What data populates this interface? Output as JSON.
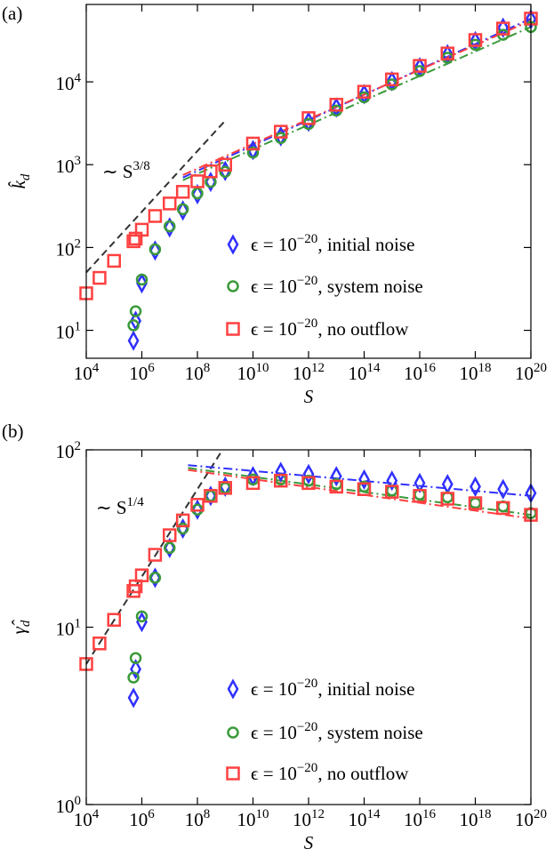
{
  "chart_data": [
    {
      "type": "scatter",
      "panel_label": "(a)",
      "xlabel": "S",
      "ylabel": "k̂_d",
      "log_x": true,
      "log_y": true,
      "legend": "lower right",
      "annotations": [
        "∼ S^3/8"
      ],
      "xlim": [
        10000.0,
        1e+20
      ],
      "ylim": [
        4.6,
        86000
      ],
      "xticks": [
        {
          "value": 10000.0,
          "label": "10^4"
        },
        {
          "value": 1000000.0,
          "label": "10^6"
        },
        {
          "value": 100000000.0,
          "label": "10^8"
        },
        {
          "value": 10000000000.0,
          "label": "10^10"
        },
        {
          "value": 1000000000000.0,
          "label": "10^12"
        },
        {
          "value": 100000000000000.0,
          "label": "10^14"
        },
        {
          "value": 1e+16,
          "label": "10^16"
        },
        {
          "value": 1e+18,
          "label": "10^18"
        },
        {
          "value": 1e+20,
          "label": "10^20"
        }
      ],
      "yticks": [
        {
          "value": 10,
          "label": "10^1"
        },
        {
          "value": 100,
          "label": "10^2"
        },
        {
          "value": 1000,
          "label": "10^3"
        },
        {
          "value": 10000,
          "label": "10^4"
        }
      ],
      "series": [
        {
          "name": "ϵ = 10^−20, initial noise",
          "color": "#3030ff",
          "marker": "diamond",
          "x": [
            500000.0,
            600000.0,
            1000000.0,
            3000000.0,
            10000000.0,
            30000000.0,
            100000000.0,
            300000000.0,
            1000000000.0,
            10000000000.0,
            100000000000.0,
            1000000000000.0,
            10000000000000.0,
            100000000000000.0,
            1000000000000000.0,
            1e+16,
            1e+17,
            1e+18,
            1e+19,
            1e+20
          ],
          "values": [
            7.5,
            13,
            37,
            92,
            175,
            280,
            440,
            620,
            840,
            1500,
            2200,
            3300,
            4900,
            7100,
            10200,
            15000,
            21500,
            31000,
            45000,
            57000
          ]
        },
        {
          "name": "ϵ = 10^−20, system noise",
          "color": "#3a9a3a",
          "marker": "circle",
          "x": [
            500000.0,
            600000.0,
            1000000.0,
            3000000.0,
            10000000.0,
            30000000.0,
            100000000.0,
            300000000.0,
            1000000000.0,
            10000000000.0,
            100000000000.0,
            1000000000000.0,
            10000000000000.0,
            100000000000000.0,
            1000000000000000.0,
            1e+16,
            1e+17,
            1e+18,
            1e+19,
            1e+20
          ],
          "values": [
            11.5,
            17,
            41,
            95,
            180,
            290,
            450,
            620,
            820,
            1400,
            2100,
            3100,
            4500,
            6500,
            9300,
            13500,
            19500,
            28000,
            37000,
            46000
          ]
        },
        {
          "name": "ϵ = 10^−20, no outflow",
          "color": "#ff4040",
          "marker": "square",
          "x": [
            10000.0,
            30000.0,
            100000.0,
            500000.0,
            600000.0,
            1000000.0,
            3000000.0,
            10000000.0,
            30000000.0,
            100000000.0,
            300000000.0,
            1000000000.0,
            10000000000.0,
            100000000000.0,
            1000000000000.0,
            10000000000000.0,
            100000000000000.0,
            1000000000000000.0,
            1e+16,
            1e+17,
            1e+18,
            1e+19,
            1e+20
          ],
          "values": [
            28,
            43,
            69,
            119,
            128,
            164,
            240,
            340,
            470,
            630,
            830,
            1000,
            1800,
            2500,
            3650,
            5300,
            7600,
            10700,
            15600,
            22000,
            32000,
            44000,
            58000
          ]
        }
      ],
      "fits": [
        {
          "color": "#333333",
          "style": "dashed",
          "x": [
            10000.0,
            1000000000.0
          ],
          "values": [
            50,
            3400
          ]
        },
        {
          "color": "#3030ff",
          "style": "dashdot",
          "x": [
            30000000.0,
            1e+20
          ],
          "values": [
            700,
            58000
          ]
        },
        {
          "color": "#3a9a3a",
          "style": "dashdot",
          "x": [
            30000000.0,
            1e+20
          ],
          "values": [
            650,
            46000
          ]
        },
        {
          "color": "#ff4040",
          "style": "dashdot",
          "x": [
            30000000.0,
            1e+20
          ],
          "values": [
            750,
            55000
          ]
        }
      ]
    },
    {
      "type": "scatter",
      "panel_label": "(b)",
      "xlabel": "S",
      "ylabel": "γ̂_d",
      "log_x": true,
      "log_y": true,
      "legend": "lower right",
      "annotations": [
        "∼ S^1/4"
      ],
      "xlim": [
        10000.0,
        1e+20
      ],
      "ylim": [
        1,
        100
      ],
      "xticks": [
        {
          "value": 10000.0,
          "label": "10^4"
        },
        {
          "value": 1000000.0,
          "label": "10^6"
        },
        {
          "value": 100000000.0,
          "label": "10^8"
        },
        {
          "value": 10000000000.0,
          "label": "10^10"
        },
        {
          "value": 1000000000000.0,
          "label": "10^12"
        },
        {
          "value": 100000000000000.0,
          "label": "10^14"
        },
        {
          "value": 1e+16,
          "label": "10^16"
        },
        {
          "value": 1e+18,
          "label": "10^18"
        },
        {
          "value": 1e+20,
          "label": "10^20"
        }
      ],
      "yticks": [
        {
          "value": 1,
          "label": "10^0"
        },
        {
          "value": 10,
          "label": "10^1"
        },
        {
          "value": 100,
          "label": "10^2"
        }
      ],
      "series": [
        {
          "name": "ϵ = 10^−20, initial noise",
          "color": "#3030ff",
          "marker": "diamond",
          "x": [
            500000.0,
            600000.0,
            1000000.0,
            3000000.0,
            10000000.0,
            30000000.0,
            100000000.0,
            300000000.0,
            1000000000.0,
            10000000000.0,
            100000000000.0,
            1000000000000.0,
            10000000000000.0,
            100000000000000.0,
            1000000000000000.0,
            1e+16,
            1e+17,
            1e+18,
            1e+19,
            1e+20
          ],
          "values": [
            4,
            5.8,
            10.7,
            19,
            28,
            36,
            46,
            55,
            62,
            71,
            75,
            73,
            71,
            68,
            67,
            65,
            64,
            62,
            60,
            57
          ]
        },
        {
          "name": "ϵ = 10^−20, system noise",
          "color": "#3a9a3a",
          "marker": "circle",
          "x": [
            500000.0,
            600000.0,
            1000000.0,
            3000000.0,
            10000000.0,
            30000000.0,
            100000000.0,
            300000000.0,
            1000000000.0,
            10000000000.0,
            100000000000.0,
            1000000000000.0,
            10000000000000.0,
            100000000000000.0,
            1000000000000000.0,
            1e+16,
            1e+17,
            1e+18,
            1e+19,
            1e+20
          ],
          "values": [
            5.2,
            6.7,
            11.5,
            19,
            28,
            36,
            46,
            55,
            61,
            68,
            68,
            67,
            64,
            62,
            59,
            56,
            54,
            50,
            48,
            44
          ]
        },
        {
          "name": "ϵ = 10^−20, no outflow",
          "color": "#ff4040",
          "marker": "square",
          "x": [
            10000.0,
            30000.0,
            100000.0,
            500000.0,
            600000.0,
            1000000.0,
            3000000.0,
            10000000.0,
            30000000.0,
            100000000.0,
            300000000.0,
            1000000000.0,
            10000000000.0,
            100000000000.0,
            1000000000000.0,
            10000000000000.0,
            100000000000000.0,
            1000000000000000.0,
            1e+16,
            1e+17,
            1e+18,
            1e+19,
            1e+20
          ],
          "values": [
            6.2,
            8.1,
            11,
            16,
            17,
            19.6,
            25.6,
            33,
            40,
            49,
            55,
            61,
            65,
            67,
            65,
            62,
            60,
            58,
            55,
            53,
            50,
            47,
            43
          ]
        }
      ],
      "fits": [
        {
          "color": "#333333",
          "style": "dashed",
          "x": [
            10000.0,
            800000000.0
          ],
          "values": [
            6.2,
            100
          ]
        },
        {
          "color": "#3030ff",
          "style": "dashdot",
          "x": [
            46000000.0,
            1e+20
          ],
          "values": [
            82,
            55
          ]
        },
        {
          "color": "#3a9a3a",
          "style": "dashdot",
          "x": [
            46000000.0,
            1e+20
          ],
          "values": [
            79,
            43
          ]
        },
        {
          "color": "#ff4040",
          "style": "dashdot",
          "x": [
            46000000.0,
            1e+20
          ],
          "values": [
            77,
            41
          ]
        }
      ]
    }
  ]
}
